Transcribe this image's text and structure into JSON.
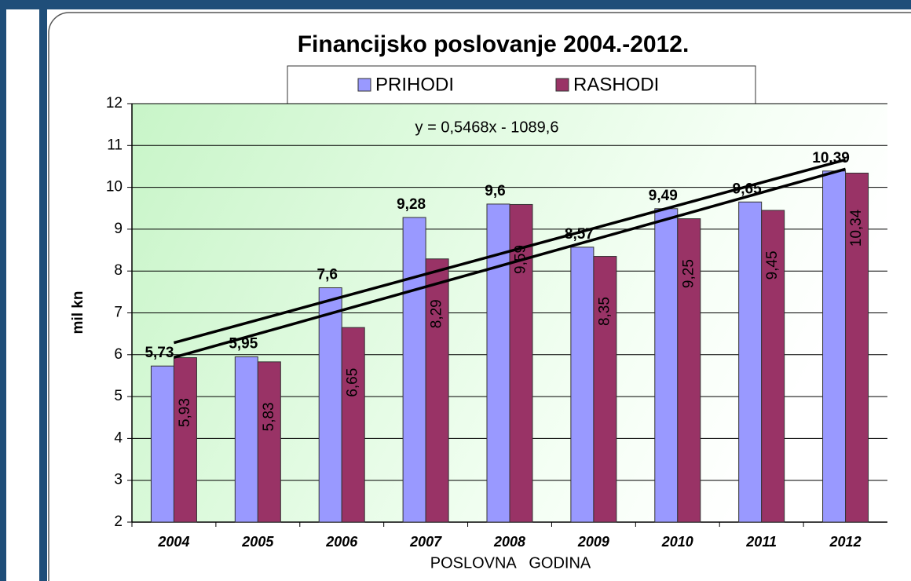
{
  "chart_data": {
    "type": "bar",
    "title": "Financijsko poslovanje 2004.-2012.",
    "annotation": "y = 0,5468x - 1089,6",
    "y_label": "mil kn",
    "x_label": "POSLOVNA   GODINA",
    "categories": [
      "2004",
      "2005",
      "2006",
      "2007",
      "2008",
      "2009",
      "2010",
      "2011",
      "2012"
    ],
    "series": [
      {
        "name": "PRIHODI",
        "color": "#9999ff",
        "values": [
          5.73,
          5.95,
          7.6,
          9.28,
          9.6,
          8.57,
          9.49,
          9.65,
          10.39
        ],
        "value_labels": [
          "5,73",
          "5,95",
          "7,6",
          "9,28",
          "9,6",
          "8,57",
          "9,49",
          "9,65",
          "10,39"
        ]
      },
      {
        "name": "RASHODI",
        "color": "#993366",
        "values": [
          5.93,
          5.83,
          6.65,
          8.29,
          9.59,
          8.35,
          9.25,
          9.45,
          10.34
        ],
        "value_labels": [
          "5,93",
          "5,83",
          "6,65",
          "8,29",
          "9,59",
          "8,35",
          "9,25",
          "9,45",
          "10,34"
        ]
      }
    ],
    "ylim": [
      2,
      12
    ],
    "yticks": [
      2,
      3,
      4,
      5,
      6,
      7,
      8,
      9,
      10,
      11,
      12
    ],
    "grid": true,
    "trendline": true,
    "legend": "top"
  }
}
